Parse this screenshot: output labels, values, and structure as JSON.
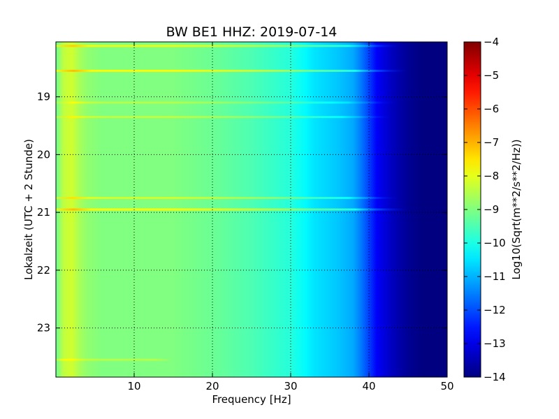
{
  "chart_data": {
    "type": "heatmap",
    "title": "BW BE1 HHZ: 2019-07-14",
    "xlabel": "Frequency [Hz]",
    "ylabel": "Lokalzeit (UTC + 2 Stunde)",
    "xlim": [
      0,
      50
    ],
    "ylim": [
      18.05,
      23.85
    ],
    "y_inverted": true,
    "x_ticks": [
      10,
      20,
      30,
      40,
      50
    ],
    "y_ticks": [
      19,
      20,
      21,
      22,
      23
    ],
    "grid": true,
    "colorbar": {
      "label": "Log10(Sqrt(m**2/s**2/Hz))",
      "range": [
        -14,
        -4
      ],
      "ticks": [
        -4,
        -5,
        -6,
        -7,
        -8,
        -9,
        -10,
        -11,
        -12,
        -13,
        -14
      ],
      "colormap": "jet"
    },
    "spectral_profile": [
      {
        "f": 0,
        "v": -9.2
      },
      {
        "f": 0.8,
        "v": -8.4
      },
      {
        "f": 2,
        "v": -8.2
      },
      {
        "f": 3.5,
        "v": -8.8
      },
      {
        "f": 6,
        "v": -9.0
      },
      {
        "f": 10,
        "v": -9.0
      },
      {
        "f": 15,
        "v": -9.0
      },
      {
        "f": 20,
        "v": -9.2
      },
      {
        "f": 25,
        "v": -9.5
      },
      {
        "f": 30,
        "v": -9.9
      },
      {
        "f": 33,
        "v": -10.5
      },
      {
        "f": 36,
        "v": -10.8
      },
      {
        "f": 38,
        "v": -11.1
      },
      {
        "f": 39.5,
        "v": -11.8
      },
      {
        "f": 41,
        "v": -12.8
      },
      {
        "f": 43,
        "v": -13.4
      },
      {
        "f": 45,
        "v": -13.8
      },
      {
        "f": 47,
        "v": -14.0
      },
      {
        "f": 50,
        "v": -14.0
      }
    ],
    "bright_lines": [
      {
        "time": 18.12,
        "f_max": 44,
        "delta": 1.0
      },
      {
        "time": 18.55,
        "f_max": 45,
        "delta": 1.2
      },
      {
        "time": 19.1,
        "f_max": 44,
        "delta": 0.5
      },
      {
        "time": 19.35,
        "f_max": 43,
        "delta": 0.6
      },
      {
        "time": 20.75,
        "f_max": 44,
        "delta": 0.8
      },
      {
        "time": 20.95,
        "f_max": 45,
        "delta": 1.2
      },
      {
        "time": 23.55,
        "f_max": 15,
        "delta": 0.5
      }
    ]
  }
}
